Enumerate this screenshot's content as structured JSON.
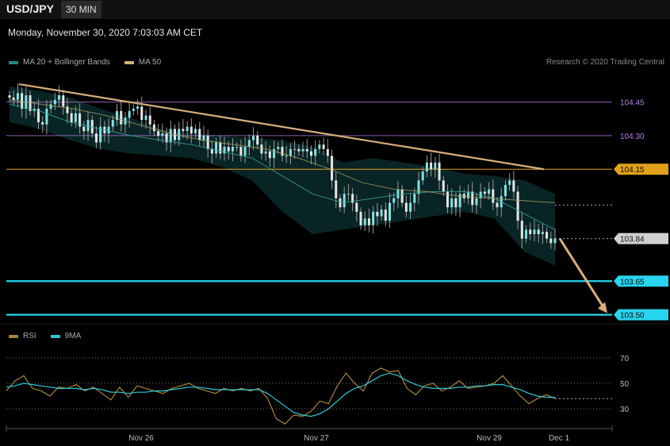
{
  "header": {
    "symbol": "USD/JPY",
    "timeframe": "30 MIN",
    "datetime": "Monday, November 30, 2020 7:03:03 AM CET",
    "credit": "Research © 2020 Trading Central"
  },
  "colors": {
    "ma20": "#1f8a8a",
    "ma50": "#d8b07a",
    "bull": "#7fe3e3",
    "bear": "#e6e6e6",
    "cyan": "#29d4ee",
    "purple": "#b87ee8",
    "orange": "#e0a21a",
    "rsi": "#a8853a",
    "rsi_ma": "#2ec8d8"
  },
  "legend_main": [
    {
      "label": "MA 20 + Bollinger Bands",
      "color": "#1f8a8a"
    },
    {
      "label": "MA 50",
      "color": "#d8b07a"
    }
  ],
  "legend_rsi": [
    {
      "label": "RSI",
      "color": "#a8853a"
    },
    {
      "label": "9MA",
      "color": "#2ec8d8"
    }
  ],
  "chart_data": [
    {
      "type": "candlestick",
      "title": "USD/JPY 30 MIN",
      "ylim": [
        103.45,
        104.55
      ],
      "x_ticks": [
        "Nov 26",
        "Nov 27",
        "Nov 29",
        "Dec 1"
      ],
      "price_lines": [
        {
          "value": 104.45,
          "label": "104.45",
          "color": "#b87ee8"
        },
        {
          "value": 104.3,
          "label": "104.30",
          "color": "#b87ee8"
        },
        {
          "value": 104.15,
          "label": "104.15",
          "color": "#e0a21a"
        },
        {
          "value": 103.84,
          "label": "103.84",
          "color": "#cccccc"
        },
        {
          "value": 103.65,
          "label": "103.65",
          "color": "#29d4ee"
        },
        {
          "value": 103.5,
          "label": "103.50",
          "color": "#29d4ee"
        }
      ],
      "close_series": [
        104.47,
        104.46,
        104.49,
        104.42,
        104.48,
        104.41,
        104.42,
        104.36,
        104.35,
        104.42,
        104.44,
        104.46,
        104.48,
        104.43,
        104.4,
        104.36,
        104.4,
        104.34,
        104.32,
        104.37,
        104.31,
        104.27,
        104.34,
        104.31,
        104.34,
        104.37,
        104.41,
        104.35,
        104.38,
        104.41,
        104.42,
        104.43,
        104.37,
        104.39,
        104.35,
        104.32,
        104.3,
        104.31,
        104.27,
        104.33,
        104.28,
        104.33,
        104.32,
        104.34,
        104.31,
        104.33,
        104.28,
        104.3,
        104.24,
        104.22,
        104.27,
        104.22,
        104.25,
        104.23,
        104.25,
        104.25,
        104.21,
        104.25,
        104.28,
        104.3,
        104.26,
        104.22,
        104.23,
        104.2,
        104.24,
        104.25,
        104.21,
        104.21,
        104.24,
        104.24,
        104.23,
        104.24,
        104.23,
        104.21,
        104.24,
        104.26,
        104.24,
        104.21,
        104.1,
        104.02,
        103.98,
        104.04,
        104.04,
        104.0,
        103.96,
        103.9,
        103.93,
        103.9,
        103.96,
        103.94,
        103.97,
        103.92,
        104.0,
        104.02,
        104.06,
        104.0,
        103.96,
        104.0,
        104.04,
        104.1,
        104.14,
        104.18,
        104.15,
        104.18,
        104.1,
        104.05,
        103.98,
        104.02,
        103.98,
        104.04,
        104.02,
        104.05,
        103.99,
        104.02,
        104.05,
        104.04,
        104.06,
        104.0,
        103.98,
        104.03,
        104.08,
        104.1,
        104.05,
        103.92,
        103.84,
        103.88,
        103.86,
        103.88,
        103.86,
        103.87,
        103.84,
        103.82,
        103.84
      ],
      "ma50_series": [
        104.46,
        104.44,
        104.42,
        104.39,
        104.35,
        104.31,
        104.28,
        104.26,
        104.24,
        104.2,
        104.15,
        104.09,
        104.06,
        104.05,
        104.03,
        104.02,
        104.01,
        104.0
      ],
      "ma20_series": [
        104.44,
        104.41,
        104.36,
        104.33,
        104.3,
        104.28,
        104.26,
        104.23,
        104.2,
        104.12,
        104.04,
        104.0,
        104.02,
        104.04,
        104.05,
        104.05,
        104.02,
        103.95,
        103.88
      ],
      "bb_upper": [
        104.52,
        104.5,
        104.47,
        104.42,
        104.38,
        104.33,
        104.31,
        104.3,
        104.29,
        104.28,
        104.25,
        104.18,
        104.2,
        104.18,
        104.16,
        104.13,
        104.12,
        104.1,
        104.04
      ],
      "bb_lower": [
        104.36,
        104.33,
        104.28,
        104.24,
        104.22,
        104.21,
        104.2,
        104.16,
        104.1,
        103.96,
        103.86,
        103.88,
        103.9,
        103.92,
        103.94,
        103.96,
        103.93,
        103.78,
        103.72
      ],
      "trendline": {
        "from": 104.53,
        "to": 104.15
      },
      "projection": {
        "from": 103.84,
        "to": 103.5
      }
    },
    {
      "type": "line",
      "title": "RSI",
      "ylim": [
        20,
        80
      ],
      "y_ticks": [
        70,
        50,
        30
      ],
      "series": [
        {
          "name": "RSI",
          "values": [
            44,
            52,
            56,
            46,
            44,
            40,
            47,
            46,
            49,
            44,
            47,
            42,
            37,
            47,
            39,
            48,
            46,
            44,
            42,
            46,
            48,
            50,
            46,
            44,
            42,
            46,
            44,
            46,
            44,
            46,
            38,
            22,
            18,
            25,
            24,
            28,
            36,
            34,
            48,
            58,
            50,
            44,
            58,
            62,
            59,
            60,
            46,
            41,
            48,
            50,
            44,
            47,
            52,
            46,
            47,
            48,
            50,
            56,
            48,
            40,
            34,
            38,
            41,
            38
          ]
        },
        {
          "name": "9MA",
          "values": [
            47,
            48,
            50,
            49,
            48,
            47,
            46,
            46,
            46,
            45,
            46,
            45,
            43,
            43,
            42,
            43,
            43,
            44,
            44,
            45,
            46,
            47,
            47,
            46,
            45,
            45,
            45,
            45,
            45,
            45,
            42,
            37,
            32,
            27,
            25,
            24,
            26,
            30,
            36,
            42,
            46,
            48,
            52,
            56,
            58,
            56,
            52,
            49,
            47,
            46,
            46,
            46,
            47,
            47,
            48,
            48,
            49,
            49,
            47,
            45,
            42,
            40,
            39,
            39
          ]
        }
      ]
    }
  ]
}
